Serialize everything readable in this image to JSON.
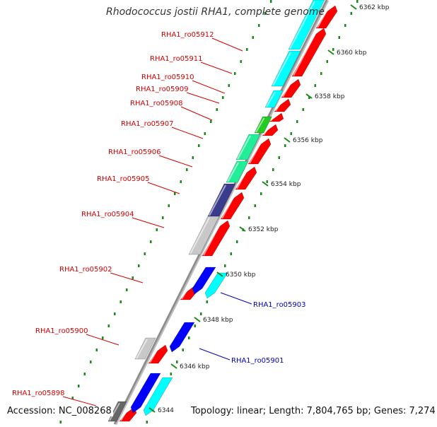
{
  "title": "Rhodococcus jostii RHA1, complete genome",
  "footer": {
    "accession": "Accession: NC_008268",
    "topology": "Topology: linear; Length: 7,804,765 bp; Genes: 7,274"
  },
  "colors": {
    "cyan": "#00ffff",
    "red": "#ff0000",
    "blue": "#0000ff",
    "green": "#22cc22",
    "teal": "#22ee99",
    "navy": "#3c3c8c",
    "lightgray": "#c8c8c8",
    "darkgray": "#666666",
    "axis": "#8c8c8c",
    "tick": "#1a8a1a",
    "red_label": "#d40000",
    "blue_label": "#0000bb"
  },
  "ticks": [
    {
      "label": "6362 kbp"
    },
    {
      "label": "6360 kbp"
    },
    {
      "label": "6358 kbp"
    },
    {
      "label": "6356 kbp"
    },
    {
      "label": "6354 kbp"
    },
    {
      "label": "6352 kbp"
    },
    {
      "label": "6350 kbp"
    },
    {
      "label": "6348 kbp"
    },
    {
      "label": "6346 kbp"
    },
    {
      "label": "6344"
    }
  ],
  "gene_labels": [
    {
      "text": "RHA1_ro05912",
      "color": "red"
    },
    {
      "text": "RHA1_ro05911",
      "color": "red"
    },
    {
      "text": "RHA1_ro05910",
      "color": "red"
    },
    {
      "text": "RHA1_ro05909",
      "color": "red"
    },
    {
      "text": "RHA1_ro05908",
      "color": "red"
    },
    {
      "text": "RHA1_ro05907",
      "color": "red"
    },
    {
      "text": "RHA1_ro05906",
      "color": "red"
    },
    {
      "text": "RHA1_ro05905",
      "color": "red"
    },
    {
      "text": "RHA1_ro05904",
      "color": "red"
    },
    {
      "text": "RHA1_ro05902",
      "color": "red"
    },
    {
      "text": "RHA1_ro05900",
      "color": "red"
    },
    {
      "text": "RHA1_ro05898",
      "color": "red"
    },
    {
      "text": "RHA1_ro05903",
      "color": "blue"
    },
    {
      "text": "RHA1_ro05901",
      "color": "blue"
    }
  ]
}
